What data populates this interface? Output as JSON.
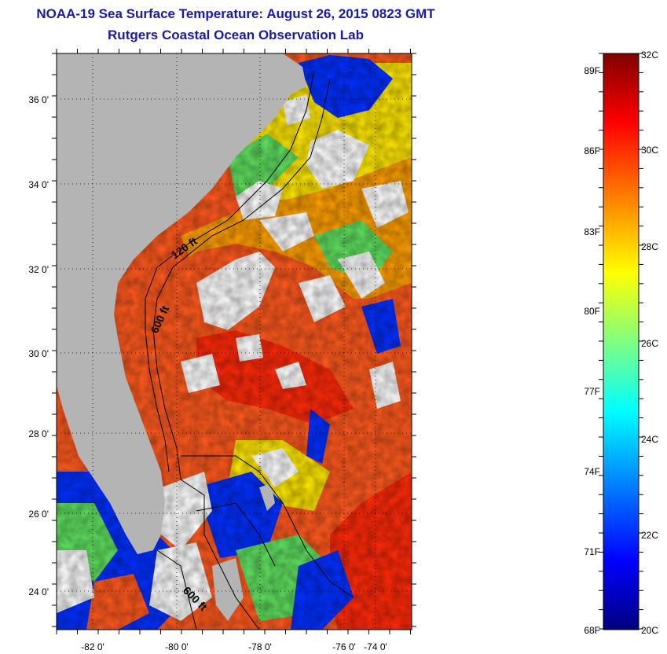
{
  "header": {
    "title": "NOAA-19 Sea Surface Temperature:  August 26, 2015 0823 GMT",
    "subtitle": "Rutgers Coastal Ocean Observation Lab"
  },
  "map": {
    "lon_labels": [
      "-82 0'",
      "-80 0'",
      "-78 0'",
      "-76 0'",
      "-74 0'"
    ],
    "lat_labels": [
      "36 0'",
      "34 0'",
      "32 0'",
      "30 0'",
      "28 0'",
      "26 0'",
      "24 0'"
    ],
    "contour_labels": [
      "120 ft",
      "600 ft",
      "600 ft"
    ]
  },
  "colorbar": {
    "celsius_labels": [
      "32C",
      "30C",
      "28C",
      "26C",
      "24C",
      "22C",
      "20C"
    ],
    "fahrenheit_labels": [
      "89F",
      "86F",
      "83F",
      "80F",
      "77F",
      "74F",
      "71F",
      "68F"
    ],
    "colors": [
      "#00007f",
      "#0000ff",
      "#007fff",
      "#00ffff",
      "#7fff7f",
      "#ffff00",
      "#ff7f00",
      "#ff0000",
      "#7f0000"
    ]
  },
  "palette": {
    "land": "#b4b4b4",
    "cloud": "#ffffff",
    "water_warm": "#ff5a1e",
    "water_hot": "#ff2a0a",
    "water_mid": "#ffa000",
    "water_cool": "#ffe800",
    "water_cold": "#0030ff",
    "water_green": "#60e060"
  }
}
